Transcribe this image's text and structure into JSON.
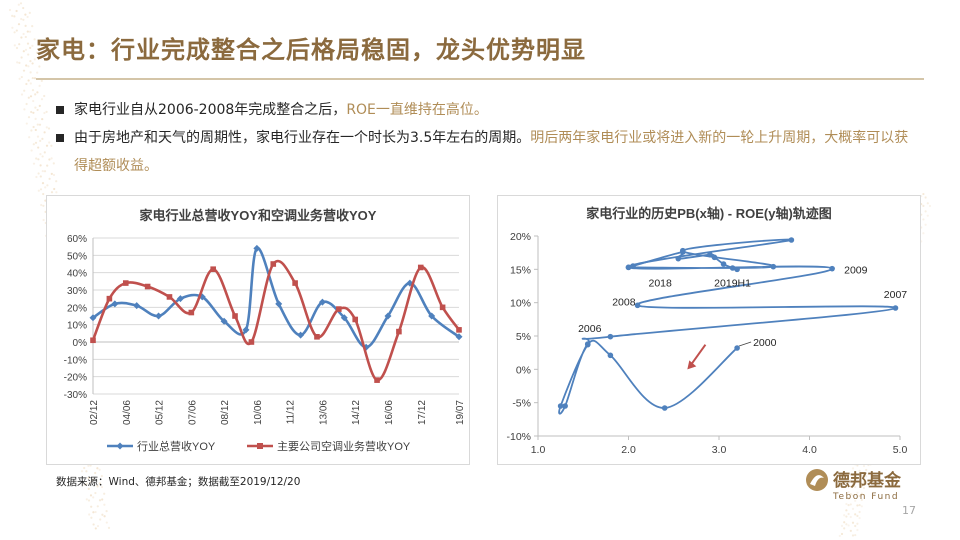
{
  "slide": {
    "title": "家电：行业完成整合之后格局稳固，龙头优势明显",
    "bullets": [
      {
        "parts": [
          {
            "text": "家电行业自从2006-2008年完成整合之后，",
            "highlight": false
          },
          {
            "text": "ROE一直维持在高位。",
            "highlight": true
          }
        ]
      },
      {
        "parts": [
          {
            "text": "由于房地产和天气的周期性，家电行业存在一个时长为3.5年左右的周期。",
            "highlight": false
          },
          {
            "text": "明后两年家电行业或将进入新的一轮上升周期，大概率可以获得超额收益。",
            "highlight": true
          }
        ]
      }
    ],
    "source": "数据来源：Wind、德邦基金；数据截至2019/12/20",
    "logo": {
      "cn": "德邦基金",
      "en": "Tebon Fund"
    },
    "page_number": "17"
  },
  "colors": {
    "title": "#8b6a3e",
    "highlight": "#b08d57",
    "series_blue": "#4f81bd",
    "series_red": "#c0504d",
    "arrow": "#c0504d"
  },
  "chart_data": [
    {
      "type": "line",
      "title": "家电行业总营收YOY和空调业务营收YOY",
      "xlabel": "",
      "ylabel": "",
      "ylim": [
        -0.3,
        0.6
      ],
      "y_ticks": [
        0.6,
        0.5,
        0.4,
        0.3,
        0.2,
        0.1,
        0,
        -0.1,
        -0.2,
        -0.3
      ],
      "y_tick_labels": [
        "60%",
        "50%",
        "40%",
        "30%",
        "20%",
        "10%",
        "0%",
        "-10%",
        "-20%",
        "-30%"
      ],
      "x_tick_labels": [
        "02/12",
        "04/06",
        "05/12",
        "07/06",
        "08/12",
        "10/06",
        "11/12",
        "13/06",
        "14/12",
        "16/06",
        "17/12",
        "19/07"
      ],
      "x_tick_positions": [
        0,
        3,
        6,
        9,
        12,
        15,
        18,
        21,
        24,
        27,
        30,
        33.5
      ],
      "x_range": [
        0,
        33.5
      ],
      "grid": true,
      "legend_position": "bottom",
      "series": [
        {
          "name": "行业总营收YOY",
          "color": "#4f81bd",
          "marker": "diamond",
          "x": [
            0,
            2,
            4,
            6,
            8,
            10,
            12,
            14,
            15,
            17,
            19,
            21,
            23,
            25,
            27,
            29,
            31,
            33.5
          ],
          "y": [
            0.14,
            0.22,
            0.21,
            0.15,
            0.25,
            0.26,
            0.12,
            0.07,
            0.54,
            0.22,
            0.04,
            0.23,
            0.14,
            -0.03,
            0.15,
            0.34,
            0.15,
            0.03
          ]
        },
        {
          "name": "主要公司空调业务营收YOY",
          "color": "#c0504d",
          "marker": "square",
          "x": [
            0,
            1.5,
            3,
            5,
            7,
            9,
            11,
            13,
            14.5,
            16.5,
            18.5,
            20.5,
            22.5,
            24,
            26,
            28,
            30,
            32,
            33.5
          ],
          "y": [
            0.01,
            0.25,
            0.34,
            0.32,
            0.26,
            0.17,
            0.42,
            0.15,
            0.0,
            0.45,
            0.34,
            0.03,
            0.19,
            0.13,
            -0.22,
            0.06,
            0.43,
            0.2,
            0.07
          ]
        }
      ]
    },
    {
      "type": "line",
      "title": "家电行业的历史PB(x轴) - ROE(y轴)轨迹图",
      "xlabel": "",
      "ylabel": "",
      "xlim": [
        1.0,
        5.0
      ],
      "ylim": [
        -0.1,
        0.2
      ],
      "x_ticks": [
        1.0,
        2.0,
        3.0,
        4.0,
        5.0
      ],
      "x_tick_labels": [
        "1.0",
        "2.0",
        "3.0",
        "4.0",
        "5.0"
      ],
      "y_ticks": [
        0.2,
        0.15,
        0.1,
        0.05,
        0,
        -0.05,
        -0.1
      ],
      "y_tick_labels": [
        "20%",
        "15%",
        "10%",
        "5%",
        "0%",
        "-5%",
        "-10%"
      ],
      "grid": false,
      "series": [
        {
          "name": "",
          "color": "#4f81bd",
          "smooth": true,
          "x": [
            3.2,
            2.4,
            1.8,
            1.55,
            1.3,
            1.25,
            1.55,
            1.8,
            4.95,
            2.1,
            4.25,
            2.0,
            3.8,
            2.6,
            3.6,
            2.0
          ],
          "y": [
            0.032,
            -0.058,
            0.021,
            0.038,
            -0.055,
            -0.055,
            0.037,
            0.049,
            0.092,
            0.096,
            0.151,
            0.153,
            0.194,
            0.178,
            0.154,
            0.153
          ]
        },
        {
          "name": "",
          "color": "#4f81bd",
          "x": [
            2.05,
            2.6,
            2.55,
            2.9,
            2.95,
            3.05,
            3.15,
            3.2
          ],
          "y": [
            0.155,
            0.176,
            0.166,
            0.172,
            0.168,
            0.158,
            0.152,
            0.15
          ]
        }
      ],
      "annotations": [
        {
          "text": "2000",
          "x": 3.2,
          "y": 0.032
        },
        {
          "text": "2006",
          "x": 1.55,
          "y": 0.038
        },
        {
          "text": "2007",
          "x": 4.95,
          "y": 0.092
        },
        {
          "text": "2008",
          "x": 2.1,
          "y": 0.096
        },
        {
          "text": "2009",
          "x": 4.25,
          "y": 0.151
        },
        {
          "text": "2018",
          "x": 2.35,
          "y": 0.153
        },
        {
          "text": "2019H1",
          "x": 3.15,
          "y": 0.15
        }
      ],
      "arrow": {
        "from": [
          2.85,
          0.037
        ],
        "to": [
          2.65,
          0.0
        ],
        "color": "#c0504d"
      }
    }
  ]
}
